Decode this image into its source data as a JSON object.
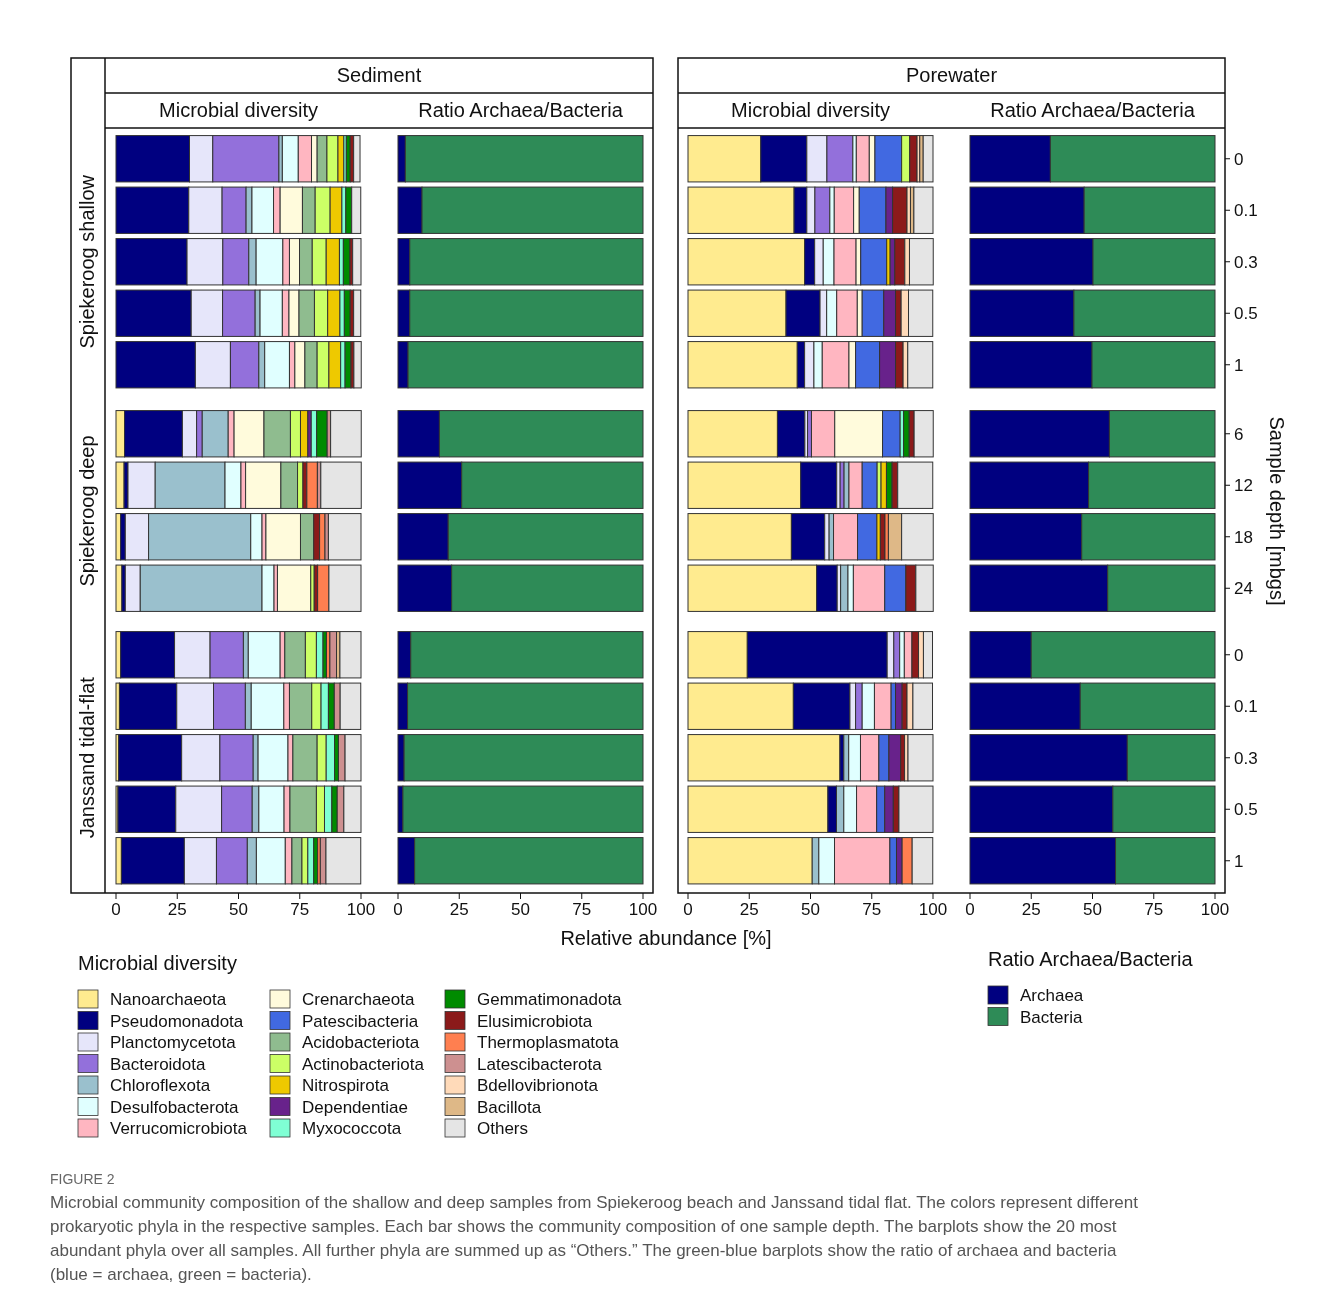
{
  "chart_data": [
    {
      "type": "bar",
      "orientation": "horizontal",
      "stacked": true,
      "title": "Sediment",
      "subtitle": "Microbial diversity",
      "ylabel": "Spiekeroog shallow",
      "categories": [
        "0",
        "0.1",
        "0.3",
        "0.5",
        "1"
      ],
      "xlim": [
        0,
        100
      ],
      "xticks": [
        0,
        25,
        50,
        75,
        100
      ],
      "tick_labels": false,
      "series": [
        {
          "color": "#000080",
          "values": [
            30,
            29.7,
            29,
            30.7,
            32.4
          ]
        },
        {
          "color": "#e6e6fa",
          "values": [
            9.5,
            13.6,
            14.6,
            12.8,
            14.3
          ]
        },
        {
          "color": "#9370db",
          "values": [
            27,
            9.8,
            10.6,
            13.3,
            11.6
          ]
        },
        {
          "color": "#9ac0cd",
          "values": [
            1.4,
            2.4,
            3,
            2,
            2.4
          ]
        },
        {
          "color": "#e0ffff",
          "values": [
            6.5,
            8.8,
            10.9,
            9.1,
            10.1
          ]
        },
        {
          "color": "#ffb6c1",
          "values": [
            5.4,
            2.7,
            2.7,
            2.7,
            2.2
          ]
        },
        {
          "color": "#fffbdc",
          "values": [
            2.3,
            9.1,
            4.1,
            4.1,
            4.1
          ]
        },
        {
          "color": "#8fbc8f",
          "values": [
            4,
            5.2,
            5.2,
            6.3,
            5
          ]
        },
        {
          "color": "#ccff66",
          "values": [
            4.5,
            6.1,
            5.7,
            5.4,
            4.8
          ]
        },
        {
          "color": "#eec900",
          "values": [
            2.4,
            4.8,
            5.4,
            5,
            4.8
          ]
        },
        {
          "color": "#7fffd4",
          "values": [
            1,
            1.6,
            1.6,
            1.8,
            1.8
          ]
        },
        {
          "color": "#008b00",
          "values": [
            1.6,
            2.4,
            2.7,
            2.4,
            2.4
          ]
        },
        {
          "color": "#8b1a1a",
          "values": [
            1.4,
            null,
            1.1,
            1.4,
            1.2
          ]
        },
        {
          "color": "#e5e5e5",
          "values": [
            2.6,
            3.7,
            3.4,
            2.9,
            3
          ]
        }
      ]
    },
    {
      "type": "bar",
      "orientation": "horizontal",
      "stacked": true,
      "subtitle": "Ratio Archaea/Bacteria",
      "categories": [
        "0",
        "0.1",
        "0.3",
        "0.5",
        "1"
      ],
      "xlim": [
        0,
        100
      ],
      "xticks": [
        0,
        25,
        50,
        75,
        100
      ],
      "tick_labels": false,
      "series": [
        {
          "color": "#000080",
          "values": [
            3,
            9.8,
            4.8,
            4.8,
            4.1
          ]
        },
        {
          "color": "#2e8b57",
          "values": [
            97,
            90.2,
            95.2,
            95.2,
            95.9
          ]
        }
      ]
    },
    {
      "type": "bar",
      "orientation": "horizontal",
      "stacked": true,
      "title": "Porewater",
      "subtitle": "Microbial diversity",
      "categories": [
        "0",
        "0.1",
        "0.3",
        "0.5",
        "1"
      ],
      "xlim": [
        0,
        100
      ],
      "xticks": [
        0,
        25,
        50,
        75,
        100
      ],
      "tick_labels": false,
      "series": [
        {
          "color": "#ffeb8f",
          "values": [
            29.7,
            43.3,
            47.6,
            40,
            44.6
          ]
        },
        {
          "color": "#000080",
          "values": [
            18.8,
            5.2,
            4.1,
            13.9,
            3
          ]
        },
        {
          "color": "#e6e6fa",
          "values": [
            8.2,
            3.3,
            3.5,
            2.7,
            3.8
          ]
        },
        {
          "color": "#9370db",
          "values": [
            10.6,
            6.1,
            null,
            null,
            null
          ]
        },
        {
          "color": "#e0ffff",
          "values": [
            1.4,
            1.8,
            4.4,
            4.1,
            3.4
          ]
        },
        {
          "color": "#ffb6c1",
          "values": [
            5.3,
            7.9,
            9,
            8.4,
            10.9
          ]
        },
        {
          "color": "#fffbdc",
          "values": [
            2.3,
            2.3,
            1.9,
            2,
            2.7
          ]
        },
        {
          "color": "#4169e1",
          "values": [
            10.9,
            10.9,
            10.6,
            8.8,
            9.8
          ]
        },
        {
          "color": "#ccff66",
          "values": [
            3.3,
            null,
            null,
            null,
            null
          ]
        },
        {
          "color": "#eec900",
          "values": [
            null,
            null,
            1.4,
            null,
            null
          ]
        },
        {
          "color": "#68228b",
          "values": [
            null,
            2.7,
            1.9,
            4.8,
            6.5
          ]
        },
        {
          "color": "#8b1a1a",
          "values": [
            3,
            5.9,
            4.1,
            2.3,
            3.1
          ]
        },
        {
          "color": "#ffdab9",
          "values": [
            1.1,
            1.4,
            1.9,
            3,
            1.9
          ]
        },
        {
          "color": "#deb887",
          "values": [
            1.4,
            1.4,
            null,
            null,
            null
          ]
        },
        {
          "color": "#e5e5e5",
          "values": [
            4,
            7.8,
            9.7,
            9.9,
            10.2
          ]
        }
      ]
    },
    {
      "type": "bar",
      "orientation": "horizontal",
      "stacked": true,
      "subtitle": "Ratio Archaea/Bacteria",
      "categories": [
        "0",
        "0.1",
        "0.3",
        "0.5",
        "1"
      ],
      "xlim": [
        0,
        100
      ],
      "xticks": [
        0,
        25,
        50,
        75,
        100
      ],
      "tick_labels": "y",
      "series": [
        {
          "color": "#000080",
          "values": [
            32.8,
            46.6,
            50.2,
            42.4,
            49.8
          ]
        },
        {
          "color": "#2e8b57",
          "values": [
            67.2,
            53.4,
            49.8,
            57.6,
            50.2
          ]
        }
      ]
    },
    {
      "type": "bar",
      "orientation": "horizontal",
      "stacked": true,
      "ylabel": "Spiekeroog deep",
      "categories": [
        "6",
        "12",
        "18",
        "24"
      ],
      "xlim": [
        0,
        100
      ],
      "xticks": [
        0,
        25,
        50,
        75,
        100
      ],
      "tick_labels": false,
      "series": [
        {
          "color": "#ffeb8f",
          "values": [
            3.5,
            3.3,
            1.9,
            2.4
          ]
        },
        {
          "color": "#000080",
          "values": [
            23.6,
            1.6,
            1.9,
            1.4
          ]
        },
        {
          "color": "#e6e6fa",
          "values": [
            5.8,
            11.1,
            9.5,
            6.1
          ]
        },
        {
          "color": "#9370db",
          "values": [
            2.3,
            null,
            null,
            null
          ]
        },
        {
          "color": "#9ac0cd",
          "values": [
            10.6,
            28.5,
            41.7,
            49.7
          ]
        },
        {
          "color": "#e0ffff",
          "values": [
            null,
            6.5,
            4.6,
            4.9
          ]
        },
        {
          "color": "#ffb6c1",
          "values": [
            2.4,
            1.9,
            1.6,
            1.4
          ]
        },
        {
          "color": "#fffbdc",
          "values": [
            12.2,
            14.4,
            14.1,
            13.6
          ]
        },
        {
          "color": "#8fbc8f",
          "values": [
            10.8,
            6.8,
            5.4,
            null
          ]
        },
        {
          "color": "#ccff66",
          "values": [
            4.1,
            2.2,
            null,
            1.4
          ]
        },
        {
          "color": "#eec900",
          "values": [
            3,
            null,
            null,
            null
          ]
        },
        {
          "color": "#68228b",
          "values": [
            1.4,
            null,
            null,
            null
          ]
        },
        {
          "color": "#7fffd4",
          "values": [
            2.2,
            null,
            null,
            null
          ]
        },
        {
          "color": "#008b00",
          "values": [
            4.3,
            null,
            null,
            null
          ]
        },
        {
          "color": "#8b1a1a",
          "values": [
            null,
            1.6,
            2.4,
            1.4
          ]
        },
        {
          "color": "#ff7f50",
          "values": [
            null,
            4.3,
            2.2,
            4.6
          ]
        },
        {
          "color": "#cd9090",
          "values": [
            1.4,
            1.4,
            1.4,
            null
          ]
        },
        {
          "color": "#e5e5e5",
          "values": [
            12.5,
            16.5,
            13.3,
            13.1
          ]
        }
      ]
    },
    {
      "type": "bar",
      "orientation": "horizontal",
      "stacked": true,
      "categories": [
        "6",
        "12",
        "18",
        "24"
      ],
      "xlim": [
        0,
        100
      ],
      "xticks": [
        0,
        25,
        50,
        75,
        100
      ],
      "tick_labels": false,
      "series": [
        {
          "color": "#000080",
          "values": [
            16.9,
            26,
            20.5,
            21.9
          ]
        },
        {
          "color": "#2e8b57",
          "values": [
            83.1,
            74,
            79.5,
            78.1
          ]
        }
      ]
    },
    {
      "type": "bar",
      "orientation": "horizontal",
      "stacked": true,
      "categories": [
        "6",
        "12",
        "18",
        "24"
      ],
      "xlim": [
        0,
        100
      ],
      "xticks": [
        0,
        25,
        50,
        75,
        100
      ],
      "tick_labels": false,
      "series": [
        {
          "color": "#ffeb8f",
          "values": [
            36.5,
            46,
            42.2,
            52.5
          ]
        },
        {
          "color": "#000080",
          "values": [
            11.2,
            14.7,
            13.6,
            8.4
          ]
        },
        {
          "color": "#e6e6fa",
          "values": [
            1.1,
            1.4,
            1.8,
            1.4
          ]
        },
        {
          "color": "#9370db",
          "values": [
            1.6,
            1.6,
            null,
            null
          ]
        },
        {
          "color": "#9ac0cd",
          "values": [
            null,
            2,
            1.8,
            3
          ]
        },
        {
          "color": "#e0ffff",
          "values": [
            null,
            null,
            null,
            2.2
          ]
        },
        {
          "color": "#ffb6c1",
          "values": [
            9.5,
            5.4,
            9.8,
            12.8
          ]
        },
        {
          "color": "#fffbdc",
          "values": [
            19.5,
            null,
            null,
            null
          ]
        },
        {
          "color": "#4169e1",
          "values": [
            7.2,
            6.1,
            7.9,
            8.6
          ]
        },
        {
          "color": "#ccff66",
          "values": [
            null,
            1.6,
            null,
            null
          ]
        },
        {
          "color": "#eec900",
          "values": [
            null,
            2.2,
            1.4,
            null
          ]
        },
        {
          "color": "#7fffd4",
          "values": [
            1.4,
            null,
            null,
            null
          ]
        },
        {
          "color": "#008b00",
          "values": [
            2.3,
            2.3,
            null,
            null
          ]
        },
        {
          "color": "#8b1a1a",
          "values": [
            2,
            2.3,
            1.9,
            4.1
          ]
        },
        {
          "color": "#ff7f50",
          "values": [
            null,
            null,
            1.4,
            null
          ]
        },
        {
          "color": "#deb887",
          "values": [
            null,
            null,
            5.4,
            null
          ]
        },
        {
          "color": "#e5e5e5",
          "values": [
            7.8,
            14.3,
            12.9,
            7.1
          ]
        }
      ]
    },
    {
      "type": "bar",
      "orientation": "horizontal",
      "stacked": true,
      "ylabel": "Sample depth [mbgs]",
      "categories": [
        "6",
        "12",
        "18",
        "24"
      ],
      "xlim": [
        0,
        100
      ],
      "xticks": [
        0,
        25,
        50,
        75,
        100
      ],
      "tick_labels": "y",
      "series": [
        {
          "color": "#000080",
          "values": [
            56.9,
            48.4,
            45.6,
            56.2
          ]
        },
        {
          "color": "#2e8b57",
          "values": [
            43.1,
            51.6,
            54.4,
            43.8
          ]
        }
      ]
    },
    {
      "type": "bar",
      "orientation": "horizontal",
      "stacked": true,
      "ylabel": "Janssand tidal-flat",
      "legend": "bottom",
      "legend_title": "Microbial diversity",
      "categories": [
        "0",
        "0.1",
        "0.3",
        "0.5",
        "1"
      ],
      "xlim": [
        0,
        100
      ],
      "xticks": [
        0,
        25,
        50,
        75,
        100
      ],
      "tick_labels": "x",
      "series": [
        {
          "name": "Nanoarchaeota",
          "color": "#ffeb8f",
          "values": [
            1.9,
            1.4,
            1.1,
            0.8,
            2.2
          ]
        },
        {
          "name": "Pseudomonadota",
          "color": "#000080",
          "values": [
            22,
            23.4,
            25.7,
            23.6,
            25.7
          ]
        },
        {
          "name": "Planctomycetota",
          "color": "#e6e6fa",
          "values": [
            14.5,
            15,
            15.6,
            18.7,
            13.1
          ]
        },
        {
          "name": "Bacteroidota",
          "color": "#9370db",
          "values": [
            13.6,
            13,
            13.6,
            12.5,
            12.6
          ]
        },
        {
          "name": "Chloroflexota",
          "color": "#9ac0cd",
          "values": [
            2,
            2.4,
            2,
            2.7,
            3.7
          ]
        },
        {
          "name": "Desulfobacterota",
          "color": "#e0ffff",
          "values": [
            13,
            13.3,
            12.2,
            10.3,
            11.8
          ]
        },
        {
          "name": "Verrucomicrobiota",
          "color": "#ffb6c1",
          "values": [
            1.9,
            2.3,
            2,
            2.4,
            2.7
          ]
        },
        {
          "name": "Crenarchaeota",
          "color": "#fffbdc",
          "values": [
            null,
            null,
            null,
            null,
            null
          ]
        },
        {
          "name": "Patescibacteria",
          "color": "#4169e1",
          "values": [
            null,
            null,
            null,
            null,
            null
          ]
        },
        {
          "name": "Acidobacteriota",
          "color": "#8fbc8f",
          "values": [
            8.4,
            9.1,
            9.9,
            10.8,
            4.1
          ]
        },
        {
          "name": "Actinobacteriota",
          "color": "#ccff66",
          "values": [
            4.5,
            3.8,
            3.7,
            3.3,
            2.4
          ]
        },
        {
          "name": "Nitrospirota",
          "color": "#eec900",
          "values": [
            null,
            null,
            null,
            null,
            null
          ]
        },
        {
          "name": "Dependentiae",
          "color": "#68228b",
          "values": [
            null,
            null,
            null,
            null,
            null
          ]
        },
        {
          "name": "Myxococcota",
          "color": "#7fffd4",
          "values": [
            2.7,
            3,
            3.4,
            3,
            2.4
          ]
        },
        {
          "name": "Gemmatimonadota",
          "color": "#008b00",
          "values": [
            1.4,
            2.4,
            1.6,
            2.2,
            1.6
          ]
        },
        {
          "name": "Elusimicrobiota",
          "color": "#8b1a1a",
          "values": [
            null,
            null,
            null,
            null,
            null
          ]
        },
        {
          "name": "Thermoplasmatota",
          "color": "#ff7f50",
          "values": [
            1.4,
            null,
            null,
            null,
            1.1
          ]
        },
        {
          "name": "Latescibacterota",
          "color": "#cd9090",
          "values": [
            2.7,
            2.4,
            2.7,
            2.7,
            2.3
          ]
        },
        {
          "name": "Bdellovibrionota",
          "color": "#ffdab9",
          "values": [
            null,
            null,
            null,
            null,
            null
          ]
        },
        {
          "name": "Bacillota",
          "color": "#deb887",
          "values": [
            1.4,
            null,
            null,
            null,
            null
          ]
        },
        {
          "name": "Others",
          "color": "#e5e5e5",
          "values": [
            8.6,
            8.4,
            6.5,
            7,
            14.2
          ]
        }
      ]
    },
    {
      "type": "bar",
      "orientation": "horizontal",
      "stacked": true,
      "xlabel": "Relative abundance [%]",
      "categories": [
        "0",
        "0.1",
        "0.3",
        "0.5",
        "1"
      ],
      "xlim": [
        0,
        100
      ],
      "xticks": [
        0,
        25,
        50,
        75,
        100
      ],
      "tick_labels": "x",
      "series": [
        {
          "color": "#000080",
          "values": [
            5.2,
            3.9,
            2.5,
            2,
            6.8
          ]
        },
        {
          "color": "#2e8b57",
          "values": [
            94.8,
            96.1,
            97.5,
            98,
            93.2
          ]
        }
      ]
    },
    {
      "type": "bar",
      "orientation": "horizontal",
      "stacked": true,
      "categories": [
        "0",
        "0.1",
        "0.3",
        "0.5",
        "1"
      ],
      "xlim": [
        0,
        100
      ],
      "xticks": [
        0,
        25,
        50,
        75,
        100
      ],
      "tick_labels": "x",
      "series": [
        {
          "color": "#ffeb8f",
          "values": [
            24.2,
            43,
            62,
            57.1,
            50.7
          ]
        },
        {
          "color": "#000080",
          "values": [
            57.1,
            23.1,
            1.6,
            3.5,
            null
          ]
        },
        {
          "color": "#e6e6fa",
          "values": [
            2.7,
            2.3,
            null,
            null,
            null
          ]
        },
        {
          "color": "#9370db",
          "values": [
            2.4,
            2.7,
            null,
            null,
            null
          ]
        },
        {
          "color": "#9ac0cd",
          "values": [
            null,
            null,
            2,
            3,
            2.7
          ]
        },
        {
          "color": "#e0ffff",
          "values": [
            1.9,
            5,
            4.8,
            5.2,
            6.4
          ]
        },
        {
          "color": "#ffb6c1",
          "values": [
            3.1,
            6.8,
            7.5,
            8.2,
            22.6
          ]
        },
        {
          "color": "#4169e1",
          "values": [
            null,
            1.8,
            4.1,
            3.3,
            2.7
          ]
        },
        {
          "color": "#68228b",
          "values": [
            null,
            2.7,
            4.8,
            3.5,
            2.3
          ]
        },
        {
          "color": "#8b1a1a",
          "values": [
            2.7,
            2,
            1.6,
            2.3,
            null
          ]
        },
        {
          "color": "#ff7f50",
          "values": [
            null,
            null,
            null,
            null,
            4.1
          ]
        },
        {
          "color": "#ffdab9",
          "values": [
            2,
            2.4,
            1.4,
            null,
            null
          ]
        },
        {
          "color": "#e5e5e5",
          "values": [
            3.7,
            8,
            10.2,
            13.9,
            8.4
          ]
        }
      ]
    },
    {
      "type": "bar",
      "orientation": "horizontal",
      "stacked": true,
      "legend": "bottom",
      "legend_title": "Ratio Archaea/Bacteria",
      "categories": [
        "0",
        "0.1",
        "0.3",
        "0.5",
        "1"
      ],
      "xlim": [
        0,
        100
      ],
      "xticks": [
        0,
        25,
        50,
        75,
        100
      ],
      "annotations": [
        "FIGURE 2",
        "Microbial community composition of the shallow and deep samples from Spiekeroog beach and Janssand tidal flat. The colors represent different prokaryotic phyla in the respective samples. Each bar shows the community composition of one sample depth. The barplots show the 20 most abundant phyla over all samples. All further phyla are summed up as “Others.” The green-blue barplots show the ratio of archaea and bacteria (blue = archaea, green = bacteria)."
      ],
      "series": [
        {
          "name": "Archaea",
          "color": "#000080",
          "values": [
            25,
            45,
            64.2,
            58.3,
            59.4
          ]
        },
        {
          "name": "Bacteria",
          "color": "#2e8b57",
          "values": [
            75,
            55,
            35.8,
            41.7,
            40.6
          ]
        }
      ]
    }
  ]
}
